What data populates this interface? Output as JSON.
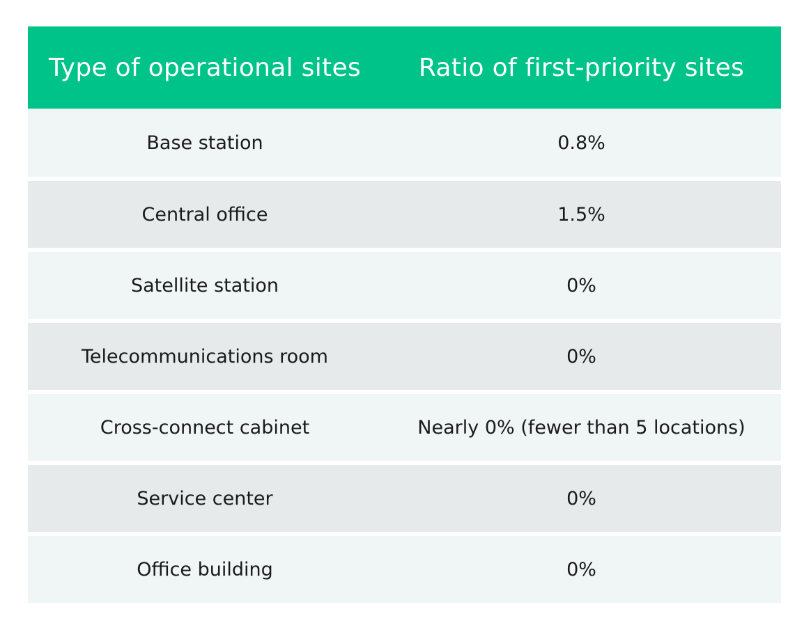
{
  "table": {
    "headers": [
      "Type of operational sites",
      "Ratio of first-priority sites"
    ],
    "rows": [
      {
        "site": "Base station",
        "ratio": "0.8%"
      },
      {
        "site": "Central office",
        "ratio": "1.5%"
      },
      {
        "site": "Satellite station",
        "ratio": "0%"
      },
      {
        "site": "Telecommunications room",
        "ratio": "0%"
      },
      {
        "site": "Cross-connect cabinet",
        "ratio": "Nearly 0% (fewer than 5 locations)"
      },
      {
        "site": "Service center",
        "ratio": "0%"
      },
      {
        "site": "Office building",
        "ratio": "0%"
      }
    ]
  },
  "colors": {
    "header_bg": "#00c389",
    "header_text": "#ffffff",
    "row_light": "#f0f5f5",
    "row_dark": "#e6eaea"
  }
}
